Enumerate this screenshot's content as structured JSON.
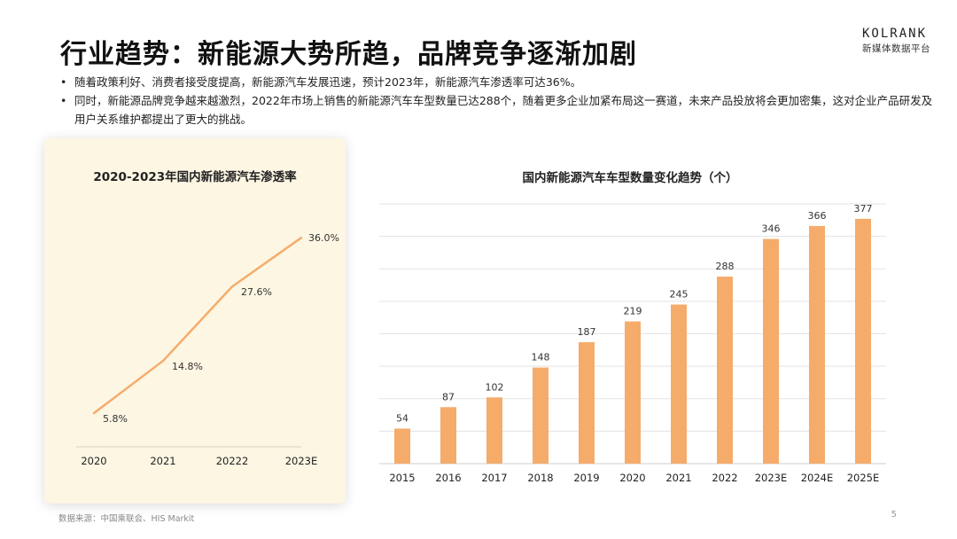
{
  "header": {
    "title": "行业趋势：新能源大势所趋，品牌竞争逐渐加剧",
    "brand_name": "KOLRANK",
    "brand_sub": "新媒体数据平台"
  },
  "bullets": [
    "随着政策利好、消费者接受度提高，新能源汽车发展迅速，预计2023年，新能源汽车渗透率可达36%。",
    "同时，新能源品牌竞争越来越激烈，2022年市场上销售的新能源汽车车型数量已达288个，随着更多企业加紧布局这一赛道，未来产品投放将会更加密集，这对企业产品研发及用户关系维护都提出了更大的挑战。"
  ],
  "footer": {
    "source": "数据来源：中国乘联会、HIS Markit",
    "page_number": "5"
  },
  "colors": {
    "accent": "#f5ac6b",
    "card_bg": "#fdf6e3",
    "grid": "#e3e3e3"
  },
  "chart_data": [
    {
      "type": "line",
      "title": "2020-2023年国内新能源汽车渗透率",
      "categories": [
        "2020",
        "2021",
        "20222",
        "2023E"
      ],
      "values": [
        5.8,
        14.8,
        27.6,
        36.0
      ],
      "labels": [
        "5.8%",
        "14.8%",
        "27.6%",
        "36.0%"
      ],
      "ylim": [
        0,
        40
      ],
      "unit": "%",
      "grid": false
    },
    {
      "type": "bar",
      "title": "国内新能源汽车车型数量变化趋势（个）",
      "categories": [
        "2015",
        "2016",
        "2017",
        "2018",
        "2019",
        "2020",
        "2021",
        "2022",
        "2023E",
        "2024E",
        "2025E"
      ],
      "values": [
        54,
        87,
        102,
        148,
        187,
        219,
        245,
        288,
        346,
        366,
        377
      ],
      "ylim": [
        0,
        400
      ],
      "grid": true
    }
  ]
}
